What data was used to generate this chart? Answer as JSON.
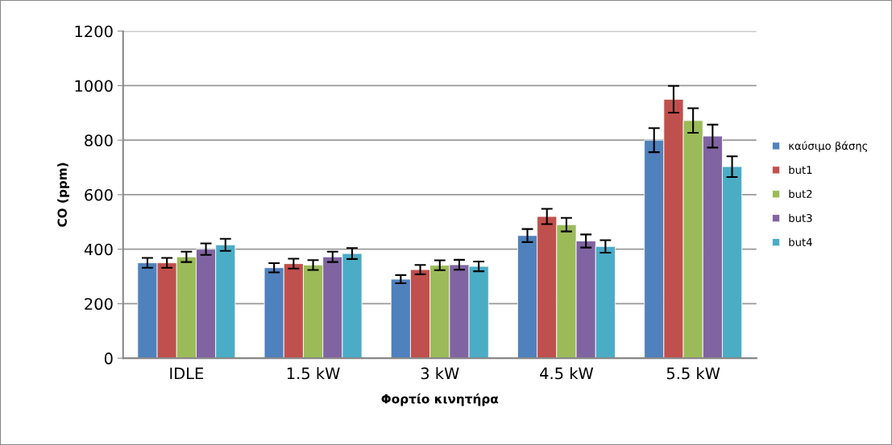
{
  "chart_data": {
    "type": "bar",
    "xlabel": "Φορτίο κινητήρα",
    "ylabel": "CO (ppm)",
    "categories": [
      "IDLE",
      "1.5 kW",
      "3 kW",
      "4.5 kW",
      "5.5 kW"
    ],
    "series": [
      {
        "name": "καύσιμο βάσης",
        "color": "#4f81bd",
        "values": [
          350,
          332,
          290,
          450,
          800
        ],
        "errors": [
          18,
          17,
          15,
          24,
          44
        ]
      },
      {
        "name": "but1",
        "color": "#c0504d",
        "values": [
          350,
          347,
          325,
          520,
          950
        ],
        "errors": [
          18,
          18,
          17,
          28,
          49
        ]
      },
      {
        "name": "but2",
        "color": "#9bbb59",
        "values": [
          372,
          342,
          341,
          490,
          872
        ],
        "errors": [
          19,
          18,
          18,
          25,
          45
        ]
      },
      {
        "name": "but3",
        "color": "#8064a2",
        "values": [
          400,
          372,
          343,
          430,
          815
        ],
        "errors": [
          21,
          19,
          18,
          24,
          42
        ]
      },
      {
        "name": "but4",
        "color": "#4bacc6",
        "values": [
          416,
          384,
          337,
          410,
          703
        ],
        "errors": [
          22,
          20,
          18,
          23,
          38
        ]
      }
    ],
    "ylim": [
      0,
      1200
    ],
    "yticks": [
      0,
      200,
      400,
      600,
      800,
      1000,
      1200
    ],
    "grid": "y",
    "legend": "right"
  }
}
